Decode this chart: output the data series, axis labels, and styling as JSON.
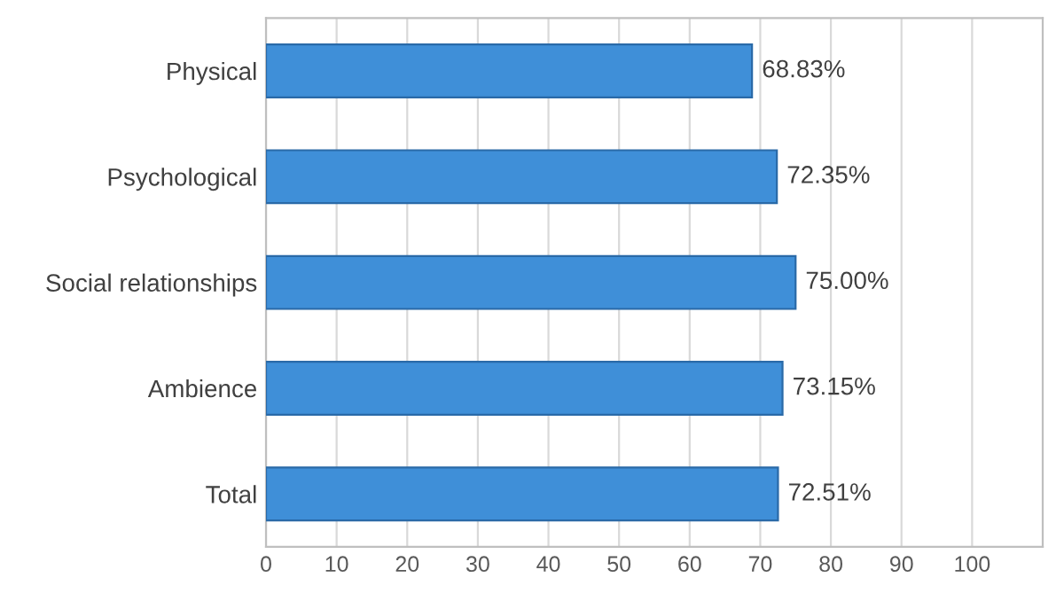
{
  "chart_data": {
    "type": "bar",
    "orientation": "horizontal",
    "categories": [
      "Physical",
      "Psychological",
      "Social relationships",
      "Ambience",
      "Total"
    ],
    "values": [
      68.83,
      72.35,
      75.0,
      73.15,
      72.51
    ],
    "value_labels": [
      "68.83%",
      "72.35%",
      "75.00%",
      "73.15%",
      "72.51%"
    ],
    "color": "#3f8fd8",
    "xlim": [
      0,
      110
    ],
    "xticks": [
      0,
      10,
      20,
      30,
      40,
      50,
      60,
      70,
      80,
      90,
      100
    ],
    "grid": "x"
  }
}
